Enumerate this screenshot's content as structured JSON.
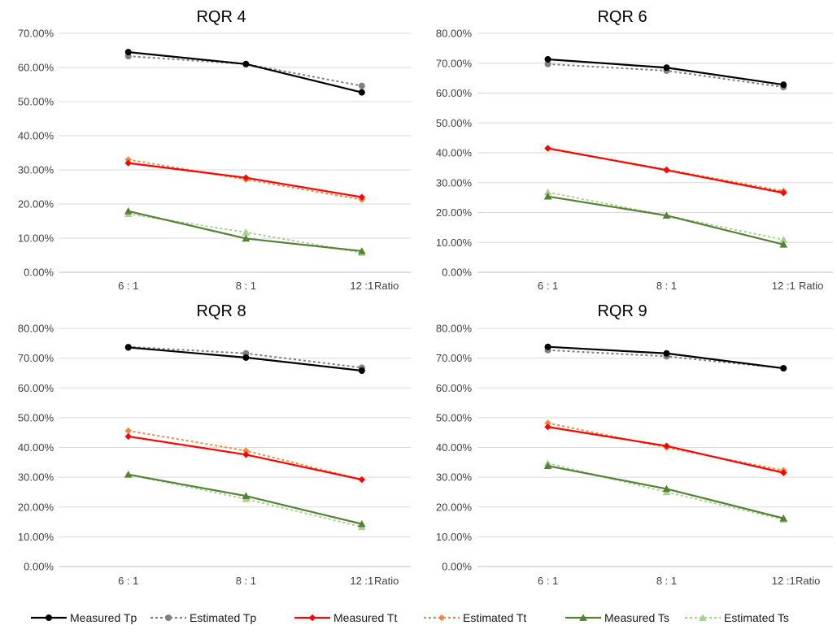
{
  "series_styles": [
    {
      "name": "Measured Tp",
      "color": "#000000",
      "dashed": false,
      "marker": "circle"
    },
    {
      "name": "Estimated Tp",
      "color": "#808080",
      "dashed": true,
      "marker": "circle"
    },
    {
      "name": "Measured Tt",
      "color": "#ff0000",
      "dashed": false,
      "marker": "diamond"
    },
    {
      "name": "Estimated Tt",
      "color": "#f0883c",
      "dashed": true,
      "marker": "diamond"
    },
    {
      "name": "Measured Ts",
      "color": "#548235",
      "dashed": false,
      "marker": "triangle"
    },
    {
      "name": "Estimated Ts",
      "color": "#a9d18e",
      "dashed": true,
      "marker": "triangle"
    }
  ],
  "chart_data": [
    {
      "type": "line",
      "title": "RQR 4",
      "categories": [
        "6 : 1",
        "8 : 1",
        "12 :1"
      ],
      "xlabel": "Ratio",
      "ylim": [
        0,
        70
      ],
      "yticks": [
        "0.00%",
        "10.00%",
        "20.00%",
        "30.00%",
        "40.00%",
        "50.00%",
        "60.00%",
        "70.00%"
      ],
      "grid": true,
      "series": [
        {
          "name": "Measured Tp",
          "values": [
            64.5,
            61.0,
            52.7
          ]
        },
        {
          "name": "Estimated Tp",
          "values": [
            63.3,
            61.0,
            54.6
          ]
        },
        {
          "name": "Measured Tt",
          "values": [
            32.0,
            27.7,
            22.0
          ]
        },
        {
          "name": "Estimated Tt",
          "values": [
            33.0,
            27.2,
            21.3
          ]
        },
        {
          "name": "Measured Ts",
          "values": [
            17.9,
            9.9,
            6.2
          ]
        },
        {
          "name": "Estimated Ts",
          "values": [
            17.1,
            11.7,
            5.7
          ]
        }
      ]
    },
    {
      "type": "line",
      "title": "RQR 6",
      "categories": [
        "6 : 1",
        "8 : 1",
        "12 :1"
      ],
      "xlabel": "Ratio",
      "ylim": [
        0,
        80
      ],
      "yticks": [
        "0.00%",
        "10.00%",
        "20.00%",
        "30.00%",
        "40.00%",
        "50.00%",
        "60.00%",
        "70.00%",
        "80.00%"
      ],
      "grid": true,
      "series": [
        {
          "name": "Measured Tp",
          "values": [
            71.3,
            68.5,
            62.8
          ]
        },
        {
          "name": "Estimated Tp",
          "values": [
            69.7,
            67.5,
            62.0
          ]
        },
        {
          "name": "Measured Tt",
          "values": [
            41.5,
            34.2,
            26.6
          ]
        },
        {
          "name": "Estimated Tt",
          "values": [
            41.5,
            34.4,
            27.2
          ]
        },
        {
          "name": "Measured Ts",
          "values": [
            25.4,
            19.0,
            9.3
          ]
        },
        {
          "name": "Estimated Ts",
          "values": [
            26.8,
            19.0,
            10.9
          ]
        }
      ]
    },
    {
      "type": "line",
      "title": "RQR 8",
      "categories": [
        "6 : 1",
        "8 : 1",
        "12 :1"
      ],
      "xlabel": "Ratio",
      "ylim": [
        0,
        80
      ],
      "yticks": [
        "0.00%",
        "10.00%",
        "20.00%",
        "30.00%",
        "40.00%",
        "50.00%",
        "60.00%",
        "70.00%",
        "80.00%"
      ],
      "grid": true,
      "series": [
        {
          "name": "Measured Tp",
          "values": [
            73.6,
            70.2,
            65.8
          ]
        },
        {
          "name": "Estimated Tp",
          "values": [
            73.8,
            71.6,
            66.8
          ]
        },
        {
          "name": "Measured Tt",
          "values": [
            43.7,
            37.6,
            29.2
          ]
        },
        {
          "name": "Estimated Tt",
          "values": [
            45.6,
            38.9,
            29.2
          ]
        },
        {
          "name": "Measured Ts",
          "values": [
            30.9,
            23.7,
            14.3
          ]
        },
        {
          "name": "Estimated Ts",
          "values": [
            30.9,
            22.7,
            13.3
          ]
        }
      ]
    },
    {
      "type": "line",
      "title": "RQR 9",
      "categories": [
        "6 : 1",
        "8 : 1",
        "12 :1"
      ],
      "xlabel": "Ratio",
      "ylim": [
        0,
        80
      ],
      "yticks": [
        "0.00%",
        "10.00%",
        "20.00%",
        "30.00%",
        "40.00%",
        "50.00%",
        "60.00%",
        "70.00%",
        "80.00%"
      ],
      "grid": true,
      "series": [
        {
          "name": "Measured Tp",
          "values": [
            73.8,
            71.6,
            66.6
          ]
        },
        {
          "name": "Estimated Tp",
          "values": [
            72.7,
            70.6,
            66.6
          ]
        },
        {
          "name": "Measured Tt",
          "values": [
            46.9,
            40.5,
            31.5
          ]
        },
        {
          "name": "Estimated Tt",
          "values": [
            48.2,
            40.0,
            32.3
          ]
        },
        {
          "name": "Measured Ts",
          "values": [
            33.8,
            26.1,
            16.2
          ]
        },
        {
          "name": "Estimated Ts",
          "values": [
            34.7,
            25.0,
            15.8
          ]
        }
      ]
    }
  ],
  "legend": {
    "placement": "bottom",
    "items": [
      "Measured Tp",
      "Estimated Tp",
      "Measured Tt",
      "Estimated Tt",
      "Measured Ts",
      "Estimated Ts"
    ]
  }
}
